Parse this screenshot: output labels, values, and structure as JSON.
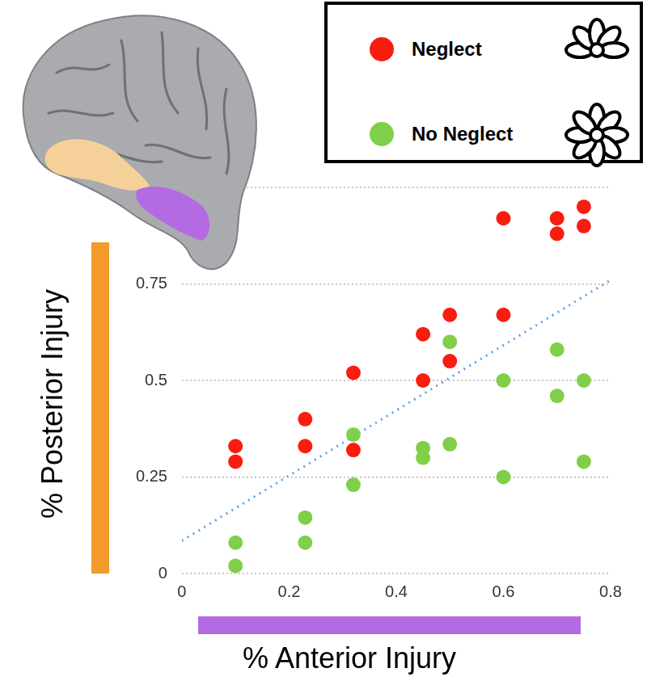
{
  "chart_data": {
    "type": "scatter",
    "x_label": "% Anterior Injury",
    "y_label": "% Posterior Injury",
    "xlim": [
      0,
      0.8
    ],
    "xticks": [
      0,
      0.2,
      0.4,
      0.6,
      0.8
    ],
    "ylim": [
      0,
      1
    ],
    "yticks": [
      0,
      0.25,
      0.5,
      0.75
    ],
    "grid": true,
    "legend": "top-right",
    "series": [
      {
        "name": "Neglect",
        "color": "#f81d10",
        "marker": "circle",
        "x": [
          0.1,
          0.1,
          0.23,
          0.23,
          0.32,
          0.32,
          0.45,
          0.45,
          0.5,
          0.5,
          0.6,
          0.6,
          0.7,
          0.7,
          0.75,
          0.75
        ],
        "values": [
          0.33,
          0.29,
          0.4,
          0.33,
          0.52,
          0.32,
          0.62,
          0.5,
          0.67,
          0.55,
          0.92,
          0.67,
          0.92,
          0.88,
          0.95,
          0.9
        ]
      },
      {
        "name": "No Neglect",
        "color": "#80cf48",
        "marker": "circle",
        "x": [
          0.1,
          0.1,
          0.23,
          0.23,
          0.32,
          0.32,
          0.45,
          0.45,
          0.5,
          0.5,
          0.6,
          0.6,
          0.7,
          0.7,
          0.75,
          0.75
        ],
        "values": [
          0.08,
          0.02,
          0.145,
          0.08,
          0.36,
          0.23,
          0.325,
          0.3,
          0.6,
          0.335,
          0.5,
          0.25,
          0.58,
          0.46,
          0.5,
          0.29
        ]
      },
      {
        "type": "line",
        "line_style": "dotted",
        "color": "#5aa3e6",
        "x": [
          0,
          0.8
        ],
        "values": [
          0.085,
          0.76
        ]
      }
    ]
  }
}
